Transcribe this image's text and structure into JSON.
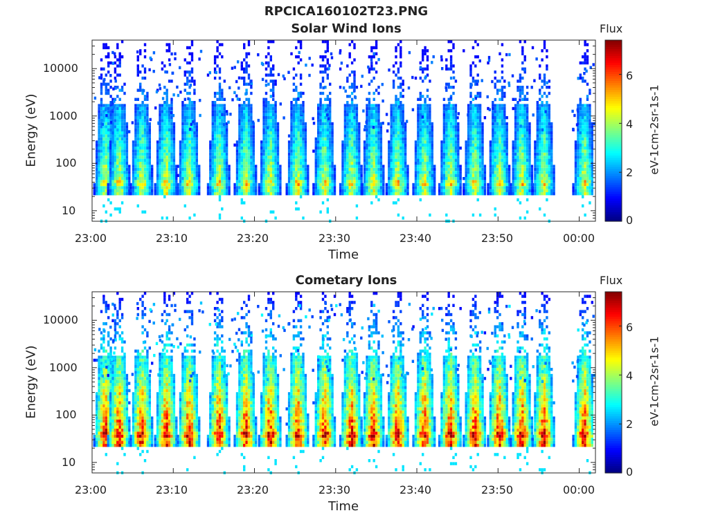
{
  "figure_title": "RPCICA160102T23.PNG",
  "colorbar": {
    "title": "Flux",
    "label": "eV-1cm-2sr-1s-1",
    "ticks": [
      "0",
      "2",
      "4",
      "6"
    ],
    "range": [
      0,
      7.4
    ]
  },
  "chart_data": [
    {
      "type": "heatmap",
      "title": "Solar Wind Ions",
      "xlabel": "Time",
      "ylabel": "Energy (eV)",
      "yscale": "log",
      "ylim": [
        6,
        40000
      ],
      "xticks": [
        "23:00",
        "23:10",
        "23:20",
        "23:30",
        "23:40",
        "23:50",
        "00:00"
      ],
      "yticks": [
        "10",
        "100",
        "1000",
        "10000"
      ],
      "bursts_minutes": [
        1.5,
        3.2,
        6.0,
        9.0,
        11.8,
        15.5,
        18.8,
        21.8,
        25.2,
        28.5,
        31.8,
        34.5,
        37.5,
        40.8,
        44.0,
        47.0,
        50.0,
        52.8,
        55.5,
        60.5
      ],
      "peak_flux": 4.8,
      "band_energy_eV": 42
    },
    {
      "type": "heatmap",
      "title": "Cometary Ions",
      "xlabel": "Time",
      "ylabel": "Energy (eV)",
      "yscale": "log",
      "ylim": [
        6,
        40000
      ],
      "xticks": [
        "23:00",
        "23:10",
        "23:20",
        "23:30",
        "23:40",
        "23:50",
        "00:00"
      ],
      "yticks": [
        "10",
        "100",
        "1000",
        "10000"
      ],
      "bursts_minutes": [
        1.5,
        3.2,
        6.0,
        9.0,
        11.8,
        15.5,
        18.8,
        21.8,
        25.2,
        28.5,
        31.8,
        34.5,
        37.5,
        40.8,
        44.0,
        47.0,
        50.0,
        52.8,
        55.5,
        60.5
      ],
      "peak_flux": 7.0,
      "band_energy_eV": 42
    }
  ]
}
